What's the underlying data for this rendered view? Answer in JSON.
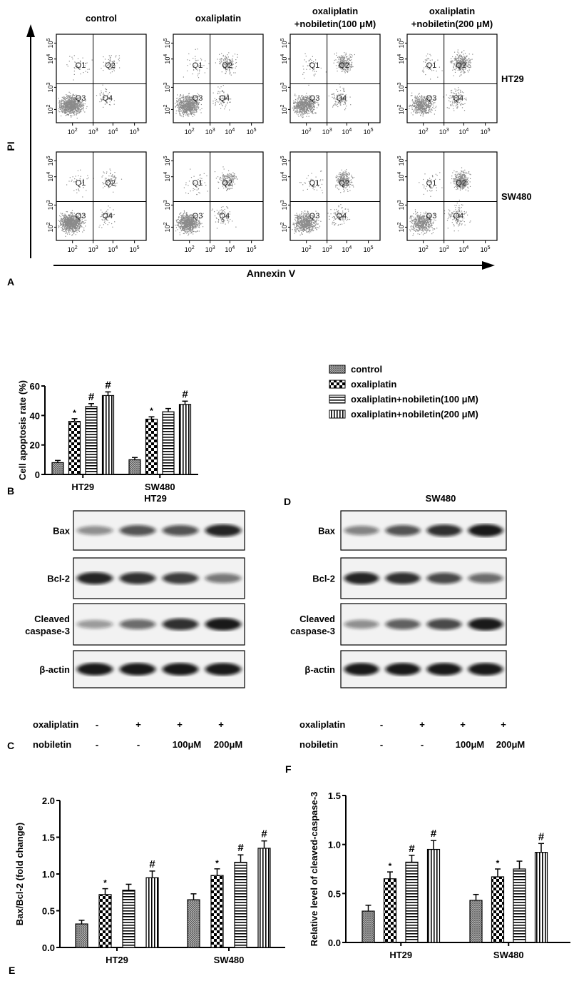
{
  "panel_labels": {
    "a": "A",
    "b": "B",
    "c": "C",
    "d": "D",
    "e": "E",
    "f": "F"
  },
  "flow": {
    "columns": [
      {
        "line1": "control",
        "line2": ""
      },
      {
        "line1": "oxaliplatin",
        "line2": ""
      },
      {
        "line1": "oxaliplatin",
        "line2": "+nobiletin(100 μM)"
      },
      {
        "line1": "oxaliplatin",
        "line2": "+nobiletin(200 μM)"
      }
    ],
    "rows": [
      "HT29",
      "SW480"
    ],
    "quadrants": [
      "Q1",
      "Q2",
      "Q3",
      "Q4"
    ],
    "tick_base": "10",
    "tick_exponents": [
      "2",
      "3",
      "4",
      "5"
    ],
    "y_axis_label": "PI",
    "x_axis_label": "Annexin V",
    "point_color": "#8a8a8a"
  },
  "blots": {
    "treatment_labels": {
      "oxaliplatin": "oxaliplatin",
      "nobiletin": "nobiletin"
    },
    "oxaliplatin": [
      "-",
      "+",
      "+",
      "+"
    ],
    "nobiletin": [
      "-",
      "-",
      "100μM",
      "200μM"
    ],
    "proteins": [
      {
        "line1": "Bax",
        "line2": ""
      },
      {
        "line1": "Bcl-2",
        "line2": ""
      },
      {
        "line1": "Cleaved",
        "line2": "caspase-3"
      },
      {
        "line1": "β-actin",
        "line2": ""
      }
    ],
    "panels": [
      {
        "title": "HT29",
        "intensity": [
          [
            0.45,
            0.7,
            0.7,
            0.9
          ],
          [
            0.9,
            0.85,
            0.8,
            0.55
          ],
          [
            0.4,
            0.6,
            0.85,
            0.95
          ],
          [
            0.95,
            0.95,
            0.95,
            0.95
          ]
        ]
      },
      {
        "title": "SW480",
        "intensity": [
          [
            0.5,
            0.7,
            0.85,
            0.95
          ],
          [
            0.9,
            0.85,
            0.75,
            0.6
          ],
          [
            0.45,
            0.65,
            0.75,
            0.95
          ],
          [
            0.95,
            0.95,
            0.95,
            0.95
          ]
        ]
      }
    ]
  },
  "chart_data": [
    {
      "type": "bar",
      "panel": "B",
      "categories": [
        "HT29",
        "SW480"
      ],
      "ylabel": "Cell apoptosis rate (%)",
      "ylim": [
        0,
        60
      ],
      "yticks": [
        "0",
        "20",
        "40",
        "60"
      ],
      "legend_position": "right",
      "series": [
        {
          "name": "control",
          "values": [
            8,
            10
          ],
          "errors": [
            1.5,
            1.5
          ],
          "marks": [
            "",
            ""
          ]
        },
        {
          "name": "oxaliplatin",
          "values": [
            36,
            37.5
          ],
          "errors": [
            1.8,
            1.6
          ],
          "marks": [
            "*",
            "*"
          ]
        },
        {
          "name": "oxaliplatin+nobiletin(100 μM)",
          "values": [
            46,
            42.5
          ],
          "errors": [
            2,
            2.2
          ],
          "marks": [
            "#",
            ""
          ]
        },
        {
          "name": "oxaliplatin+nobiletin(200 μM)",
          "values": [
            53.5,
            47.5
          ],
          "errors": [
            2.5,
            2.2
          ],
          "marks": [
            "#",
            "#"
          ]
        }
      ]
    },
    {
      "type": "bar",
      "panel": "E",
      "categories": [
        "HT29",
        "SW480"
      ],
      "ylabel": "Bax/Bcl-2 (fold change)",
      "ylim": [
        0,
        2
      ],
      "yticks": [
        "0.0",
        "0.5",
        "1.0",
        "1.5",
        "2.0"
      ],
      "series": [
        {
          "values": [
            0.32,
            0.65
          ],
          "errors": [
            0.05,
            0.08
          ],
          "marks": [
            "",
            ""
          ]
        },
        {
          "values": [
            0.72,
            0.98
          ],
          "errors": [
            0.08,
            0.09
          ],
          "marks": [
            "*",
            "*"
          ]
        },
        {
          "values": [
            0.78,
            1.16
          ],
          "errors": [
            0.08,
            0.1
          ],
          "marks": [
            "",
            "#"
          ]
        },
        {
          "values": [
            0.95,
            1.35
          ],
          "errors": [
            0.09,
            0.1
          ],
          "marks": [
            "#",
            "#"
          ]
        }
      ]
    },
    {
      "type": "bar",
      "panel": "F",
      "categories": [
        "HT29",
        "SW480"
      ],
      "ylabel": "Relative level of cleaved-caspase-3",
      "ylim": [
        0,
        1.5
      ],
      "yticks": [
        "0.0",
        "0.5",
        "1.0",
        "1.5"
      ],
      "series": [
        {
          "values": [
            0.32,
            0.43
          ],
          "errors": [
            0.06,
            0.06
          ],
          "marks": [
            "",
            ""
          ]
        },
        {
          "values": [
            0.65,
            0.67
          ],
          "errors": [
            0.07,
            0.08
          ],
          "marks": [
            "*",
            "*"
          ]
        },
        {
          "values": [
            0.82,
            0.75
          ],
          "errors": [
            0.07,
            0.08
          ],
          "marks": [
            "#",
            ""
          ]
        },
        {
          "values": [
            0.95,
            0.92
          ],
          "errors": [
            0.09,
            0.09
          ],
          "marks": [
            "#",
            "#"
          ]
        }
      ]
    }
  ]
}
